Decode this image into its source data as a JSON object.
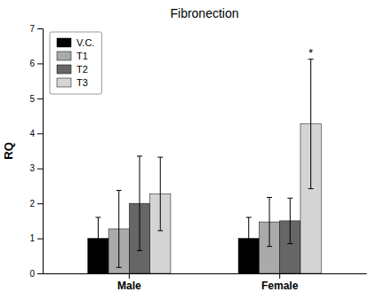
{
  "chart_data": {
    "type": "bar",
    "title": "Fibronection",
    "ylabel": "RQ",
    "categories": [
      "Male",
      "Female"
    ],
    "series": [
      {
        "name": "V.C.",
        "color": "#000000",
        "values": [
          1.0,
          1.0
        ],
        "errors": [
          0.6,
          0.6
        ]
      },
      {
        "name": "T1",
        "color": "#aaaaaa",
        "values": [
          1.27,
          1.47
        ],
        "errors": [
          1.1,
          0.7
        ]
      },
      {
        "name": "T2",
        "color": "#666666",
        "values": [
          2.0,
          1.5
        ],
        "errors": [
          1.35,
          0.65
        ]
      },
      {
        "name": "T3",
        "color": "#d4d4d4",
        "values": [
          2.27,
          4.27
        ],
        "errors": [
          1.05,
          1.85
        ]
      }
    ],
    "annotations": [
      {
        "text": "*",
        "category": "Female",
        "series": "T3"
      }
    ],
    "ylim": [
      0,
      7
    ],
    "yticks": [
      0,
      1,
      2,
      3,
      4,
      5,
      6,
      7
    ],
    "grid": false,
    "legend": "upper left"
  }
}
